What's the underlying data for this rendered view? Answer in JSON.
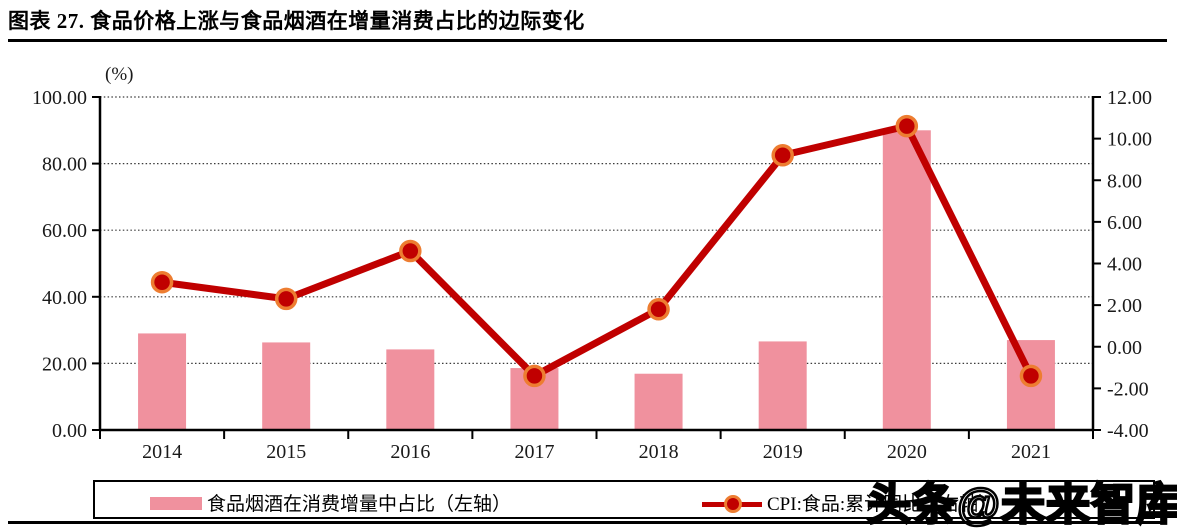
{
  "figure": {
    "title": "图表 27. 食品价格上涨与食品烟酒在增量消费占比的边际变化",
    "watermark": "头条@未来智库"
  },
  "chart_data": {
    "type": "bar",
    "subtype": "bar+line combo, dual axis",
    "categories": [
      "2014",
      "2015",
      "2016",
      "2017",
      "2018",
      "2019",
      "2020",
      "2021"
    ],
    "series": [
      {
        "name": "食品烟酒在消费增量中占比（左轴）",
        "type": "bar",
        "axis": "left",
        "color": "#F0919E",
        "values": [
          29.0,
          26.3,
          24.2,
          18.6,
          16.9,
          26.6,
          90.0,
          27.0
        ]
      },
      {
        "name": "CPI:食品:累计同比（右轴）",
        "type": "line",
        "axis": "right",
        "color": "#C00000",
        "marker_ring_color": "#ED7D31",
        "values": [
          3.1,
          2.3,
          4.6,
          -1.4,
          1.8,
          9.2,
          10.6,
          -1.4
        ]
      }
    ],
    "left_axis": {
      "label": "(%)",
      "min": 0,
      "max": 100,
      "step": 20,
      "tick_labels": [
        "0.00",
        "20.00",
        "40.00",
        "60.00",
        "80.00",
        "100.00"
      ]
    },
    "right_axis": {
      "min": -4,
      "max": 12,
      "step": 2,
      "tick_labels": [
        "-4.00",
        "-2.00",
        "0.00",
        "2.00",
        "4.00",
        "6.00",
        "8.00",
        "10.00",
        "12.00"
      ]
    },
    "grid": "horizontal dotted lines at left-axis ticks",
    "legend_position": "bottom, boxed"
  },
  "legend": {
    "items": [
      {
        "label": "食品烟酒在消费增量中占比（左轴）",
        "swatch": "bar"
      },
      {
        "label": "CPI:食品:累计同比（右轴）",
        "swatch": "line-marker"
      }
    ]
  }
}
